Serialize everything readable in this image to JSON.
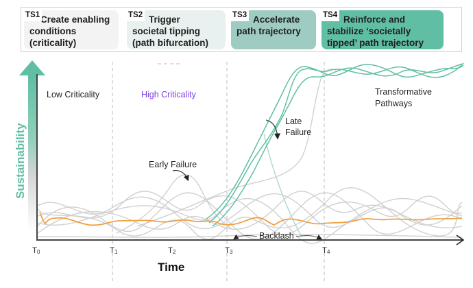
{
  "stages": [
    {
      "tag": "TS1",
      "line1": "Create enabling",
      "line2": "conditions",
      "line3": "(criticality)"
    },
    {
      "tag": "TS2",
      "line1": "Trigger",
      "line2": "societal tipping",
      "line3": "(path bifurcation)"
    },
    {
      "tag": "TS3",
      "line1": "Accelerate",
      "line2": "path trajectory",
      "line3": ""
    },
    {
      "tag": "TS4",
      "line1": "Reinforce and",
      "line2": "stabilize ‘societally",
      "line3": "tipped’ path trajectory"
    }
  ],
  "axes": {
    "y_label": "Sustainability",
    "x_label": "Time",
    "ticks": [
      {
        "base": "T",
        "sub": "0"
      },
      {
        "base": "T",
        "sub": "1"
      },
      {
        "base": "T",
        "sub": "2"
      },
      {
        "base": "T",
        "sub": "3"
      },
      {
        "base": "T",
        "sub": "4"
      }
    ]
  },
  "annotations": {
    "low_criticality": "Low Criticality",
    "high_criticality": "High Criticality",
    "early_failure": "Early Failure",
    "late_failure_1": "Late",
    "late_failure_2": "Failure",
    "transformative_1": "Transformative",
    "transformative_2": "Pathways",
    "backlash": "Backlash"
  },
  "colors": {
    "teal": "#5fbea4",
    "orange": "#f0a040",
    "gray_path": "#cfcfcf",
    "axis": "#444444",
    "high_criticality_text": "#7b3fe4"
  }
}
